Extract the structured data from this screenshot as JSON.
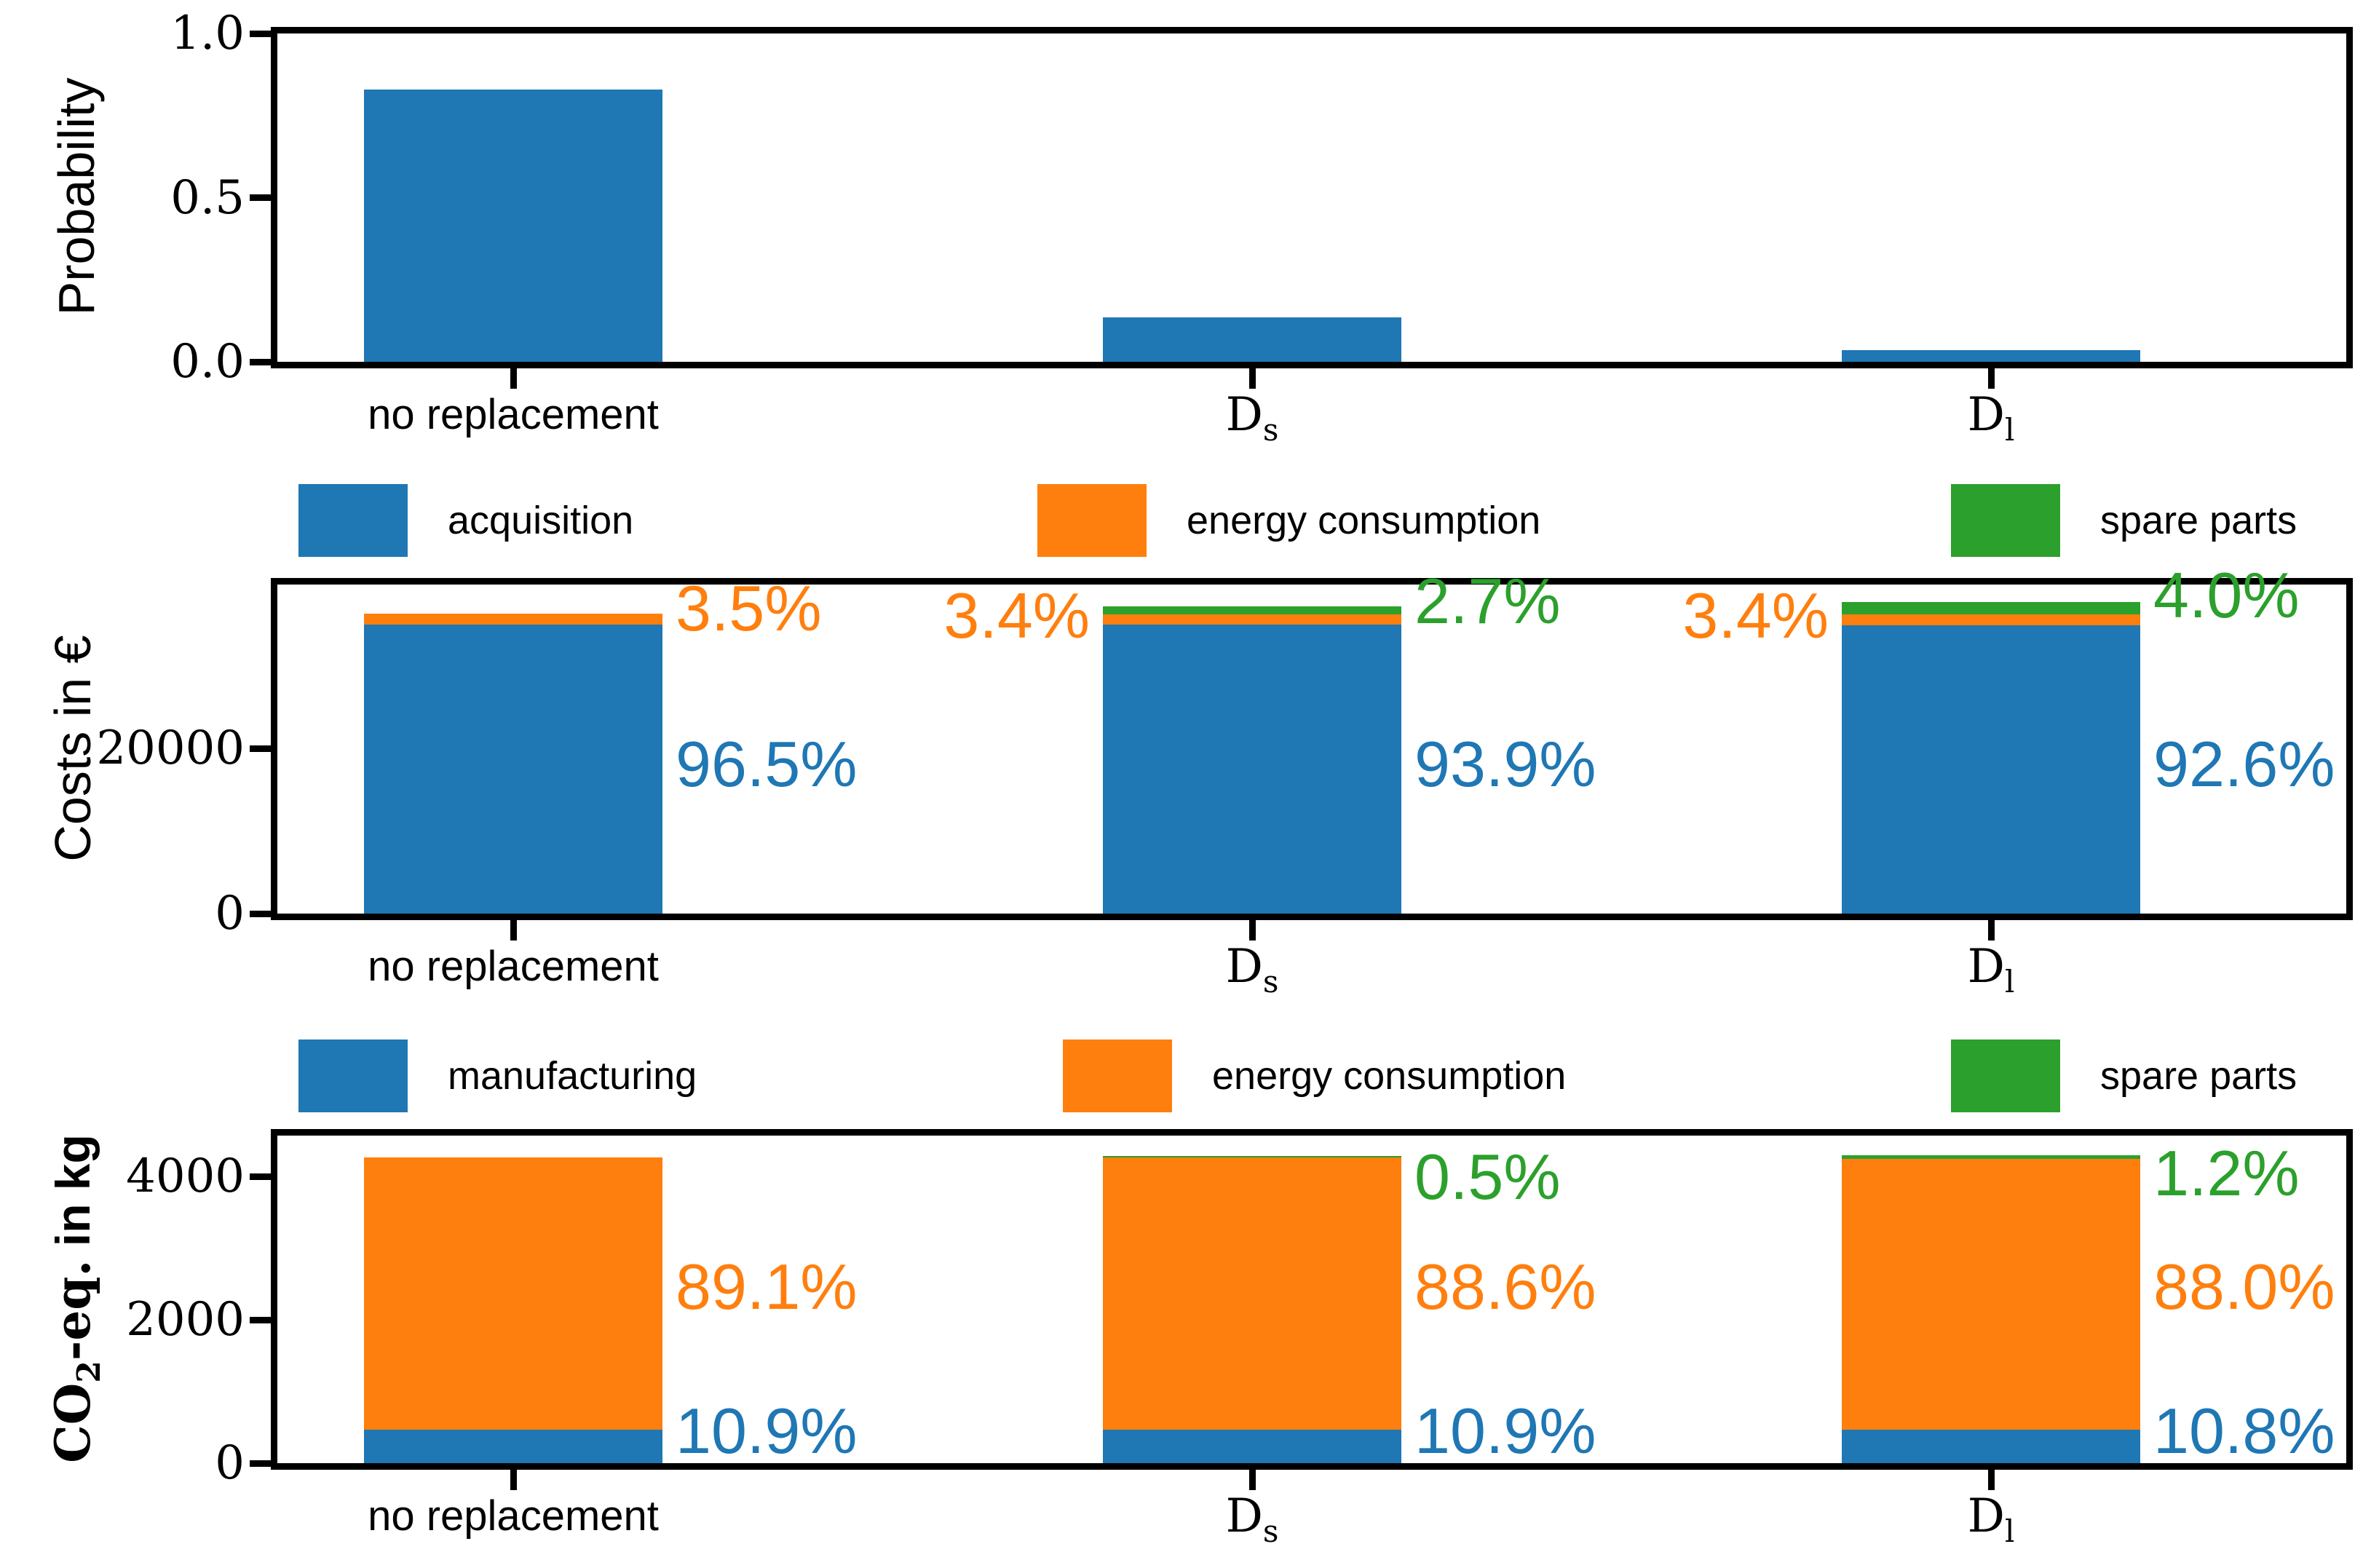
{
  "figure": {
    "background": "#ffffff"
  },
  "colors": {
    "blue": "#1f77b4",
    "orange": "#ff7f0e",
    "green": "#2ca02c",
    "axis": "#000000"
  },
  "categories_display": [
    {
      "main": "no replacement",
      "sub": ""
    },
    {
      "main": "D",
      "sub": "s"
    },
    {
      "main": "D",
      "sub": "l"
    }
  ],
  "chart_data": [
    {
      "type": "bar",
      "title": "",
      "xlabel": "",
      "ylabel": "Probability",
      "categories": [
        "no replacement",
        "D_s",
        "D_l"
      ],
      "values": [
        0.83,
        0.135,
        0.035
      ],
      "bar_color": "#1f77b4",
      "ylim": [
        0,
        1.0
      ],
      "yticks": [
        0.0,
        0.5,
        1.0
      ],
      "ytick_labels": [
        "0.0",
        "0.5",
        "1.0"
      ],
      "grid": false,
      "legend": []
    },
    {
      "type": "stacked-bar",
      "title": "",
      "xlabel": "",
      "ylabel": "Costs in €",
      "categories": [
        "no replacement",
        "D_s",
        "D_l"
      ],
      "series": [
        {
          "name": "acquisition",
          "color": "#1f77b4",
          "values": [
            35000,
            34950,
            34900
          ],
          "pct_labels": [
            "96.5%",
            "93.9%",
            "92.6%"
          ]
        },
        {
          "name": "energy consumption",
          "color": "#ff7f0e",
          "values": [
            1270,
            1265,
            1280
          ],
          "pct_labels": [
            "3.5%",
            "3.4%",
            "3.4%"
          ]
        },
        {
          "name": "spare parts",
          "color": "#2ca02c",
          "values": [
            0,
            1000,
            1510
          ],
          "pct_labels": [
            "",
            "2.7%",
            "4.0%"
          ]
        }
      ],
      "ylim": [
        0,
        39800
      ],
      "yticks": [
        0,
        20000
      ],
      "ytick_labels": [
        "0",
        "20000"
      ],
      "legend": [
        "acquisition",
        "energy consumption",
        "spare parts"
      ],
      "legend_position": "above",
      "grid": false
    },
    {
      "type": "stacked-bar",
      "title": "",
      "xlabel": "",
      "ylabel": "CO2-eq. in kg",
      "ylabel_parts": [
        "CO",
        "2",
        "-eq.",
        " in kg"
      ],
      "categories": [
        "no replacement",
        "D_s",
        "D_l"
      ],
      "series": [
        {
          "name": "manufacturing",
          "color": "#1f77b4",
          "values": [
            465,
            467,
            464
          ],
          "pct_labels": [
            "10.9%",
            "10.9%",
            "10.8%"
          ]
        },
        {
          "name": "energy consumption",
          "color": "#ff7f0e",
          "values": [
            3795,
            3796,
            3784
          ],
          "pct_labels": [
            "89.1%",
            "88.6%",
            "88.0%"
          ]
        },
        {
          "name": "spare parts",
          "color": "#2ca02c",
          "values": [
            0,
            21,
            52
          ],
          "pct_labels": [
            "",
            "0.5%",
            "1.2%"
          ]
        }
      ],
      "ylim": [
        0,
        4570
      ],
      "yticks": [
        0,
        2000,
        4000
      ],
      "ytick_labels": [
        "0",
        "2000",
        "4000"
      ],
      "legend": [
        "manufacturing",
        "energy consumption",
        "spare parts"
      ],
      "legend_position": "above",
      "grid": false
    }
  ]
}
